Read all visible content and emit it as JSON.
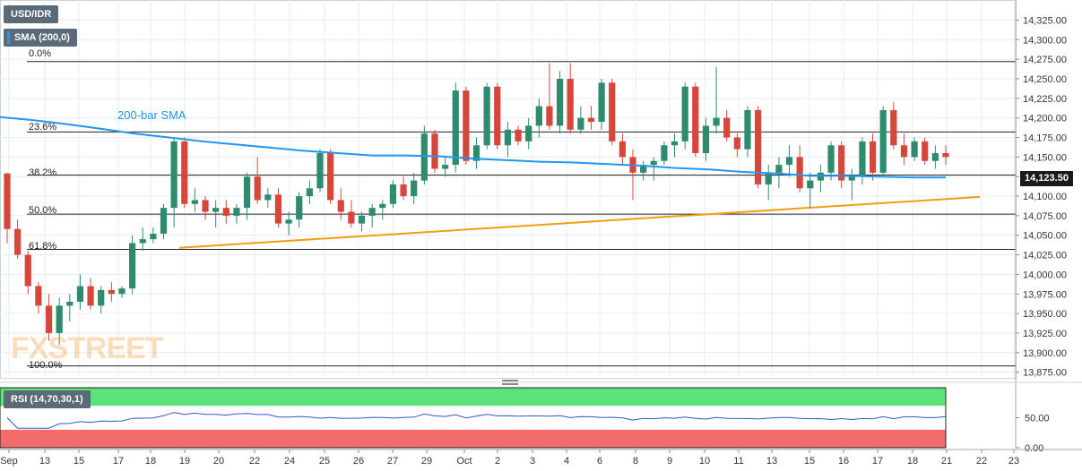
{
  "header": {
    "symbol": "USD/IDR",
    "indicator": "SMA (200,0)",
    "indicator_color": "#2196f3"
  },
  "watermark": "FXSTREET",
  "price_tag": "14,123.50",
  "rsi_panel": {
    "label": "RSI (14,70,30,1)",
    "overbought": 70,
    "oversold": 30,
    "ticks": [
      "50.00",
      "0.00"
    ],
    "zone_colors": {
      "overbought": "#5be37a",
      "oversold": "#f36b6b",
      "line": "#3355cc"
    }
  },
  "chart_data": {
    "type": "candlestick",
    "title": "",
    "price_range": [
      13870,
      14345
    ],
    "y_ticks": [
      "14,325.00",
      "14,300.00",
      "14,275.00",
      "14,250.00",
      "14,225.00",
      "14,200.00",
      "14,175.00",
      "14,150.00",
      "14,125.00",
      "14,100.00",
      "14,075.00",
      "14,050.00",
      "14,025.00",
      "14,000.00",
      "13,975.00",
      "13,950.00",
      "13,925.00",
      "13,900.00",
      "13,875.00"
    ],
    "x_tick_labels": [
      "Sep",
      "13",
      "15",
      "17",
      "18",
      "19",
      "20",
      "22",
      "24",
      "25",
      "26",
      "27",
      "29",
      "Oct",
      "2",
      "3",
      "4",
      "6",
      "8",
      "9",
      "10",
      "11",
      "13",
      "15",
      "16",
      "17",
      "18",
      "21",
      "22",
      "23"
    ],
    "fib_levels": [
      {
        "label": "0.0%",
        "value": 14272
      },
      {
        "label": "23.6%",
        "value": 14182
      },
      {
        "label": "38.2%",
        "value": 14127
      },
      {
        "label": "50.0%",
        "value": 14077
      },
      {
        "label": "61.8%",
        "value": 14032
      },
      {
        "label": "100.0%",
        "value": 13883
      }
    ],
    "annotations": {
      "sma_label": "200-bar SMA",
      "trendline": {
        "from": 14034,
        "to": 14099,
        "color": "#f39c12"
      }
    },
    "colors": {
      "up": "#2e8b6e",
      "down": "#d6463b",
      "sma": "#2196f3",
      "grid": "#e6ecf2"
    },
    "sma": [
      14201,
      14197,
      14192,
      14186,
      14180,
      14175,
      14170,
      14166,
      14162,
      14158,
      14155,
      14152,
      14152,
      14151,
      14148,
      14146,
      14144,
      14143,
      14141,
      14139,
      14136,
      14134,
      14131,
      14129,
      14126,
      14126,
      14125,
      14124,
      14124
    ],
    "candles": [
      {
        "o": 14129,
        "h": 14130,
        "l": 14040,
        "c": 14058
      },
      {
        "o": 14058,
        "h": 14070,
        "l": 14020,
        "c": 14025
      },
      {
        "o": 14025,
        "h": 14030,
        "l": 13975,
        "c": 13985
      },
      {
        "o": 13985,
        "h": 13990,
        "l": 13950,
        "c": 13960
      },
      {
        "o": 13960,
        "h": 13975,
        "l": 13915,
        "c": 13925
      },
      {
        "o": 13925,
        "h": 13970,
        "l": 13910,
        "c": 13960
      },
      {
        "o": 13960,
        "h": 13975,
        "l": 13940,
        "c": 13965
      },
      {
        "o": 13965,
        "h": 14000,
        "l": 13955,
        "c": 13985
      },
      {
        "o": 13985,
        "h": 13995,
        "l": 13955,
        "c": 13960
      },
      {
        "o": 13960,
        "h": 13985,
        "l": 13950,
        "c": 13980
      },
      {
        "o": 13980,
        "h": 13990,
        "l": 13965,
        "c": 13975
      },
      {
        "o": 13975,
        "h": 13985,
        "l": 13970,
        "c": 13982
      },
      {
        "o": 13982,
        "h": 14050,
        "l": 13975,
        "c": 14040
      },
      {
        "o": 14040,
        "h": 14060,
        "l": 14030,
        "c": 14045
      },
      {
        "o": 14045,
        "h": 14060,
        "l": 14040,
        "c": 14052
      },
      {
        "o": 14052,
        "h": 14090,
        "l": 14045,
        "c": 14085
      },
      {
        "o": 14085,
        "h": 14175,
        "l": 14060,
        "c": 14170
      },
      {
        "o": 14170,
        "h": 14175,
        "l": 14085,
        "c": 14090
      },
      {
        "o": 14090,
        "h": 14110,
        "l": 14080,
        "c": 14095
      },
      {
        "o": 14095,
        "h": 14100,
        "l": 14070,
        "c": 14080
      },
      {
        "o": 14080,
        "h": 14095,
        "l": 14060,
        "c": 14085
      },
      {
        "o": 14085,
        "h": 14095,
        "l": 14065,
        "c": 14075
      },
      {
        "o": 14075,
        "h": 14090,
        "l": 14065,
        "c": 14085
      },
      {
        "o": 14085,
        "h": 14130,
        "l": 14070,
        "c": 14125
      },
      {
        "o": 14125,
        "h": 14150,
        "l": 14090,
        "c": 14095
      },
      {
        "o": 14095,
        "h": 14110,
        "l": 14085,
        "c": 14102
      },
      {
        "o": 14102,
        "h": 14110,
        "l": 14060,
        "c": 14065
      },
      {
        "o": 14065,
        "h": 14080,
        "l": 14050,
        "c": 14070
      },
      {
        "o": 14070,
        "h": 14105,
        "l": 14060,
        "c": 14100
      },
      {
        "o": 14100,
        "h": 14120,
        "l": 14090,
        "c": 14110
      },
      {
        "o": 14110,
        "h": 14160,
        "l": 14105,
        "c": 14155
      },
      {
        "o": 14155,
        "h": 14160,
        "l": 14090,
        "c": 14095
      },
      {
        "o": 14095,
        "h": 14110,
        "l": 14070,
        "c": 14080
      },
      {
        "o": 14080,
        "h": 14095,
        "l": 14060,
        "c": 14065
      },
      {
        "o": 14065,
        "h": 14080,
        "l": 14055,
        "c": 14075
      },
      {
        "o": 14075,
        "h": 14090,
        "l": 14060,
        "c": 14085
      },
      {
        "o": 14085,
        "h": 14095,
        "l": 14070,
        "c": 14090
      },
      {
        "o": 14090,
        "h": 14120,
        "l": 14085,
        "c": 14115
      },
      {
        "o": 14115,
        "h": 14125,
        "l": 14095,
        "c": 14100
      },
      {
        "o": 14100,
        "h": 14130,
        "l": 14090,
        "c": 14120
      },
      {
        "o": 14120,
        "h": 14190,
        "l": 14115,
        "c": 14180
      },
      {
        "o": 14180,
        "h": 14185,
        "l": 14130,
        "c": 14135
      },
      {
        "o": 14135,
        "h": 14150,
        "l": 14125,
        "c": 14140
      },
      {
        "o": 14140,
        "h": 14245,
        "l": 14130,
        "c": 14235
      },
      {
        "o": 14235,
        "h": 14240,
        "l": 14140,
        "c": 14145
      },
      {
        "o": 14145,
        "h": 14175,
        "l": 14135,
        "c": 14165
      },
      {
        "o": 14165,
        "h": 14245,
        "l": 14160,
        "c": 14240
      },
      {
        "o": 14240,
        "h": 14245,
        "l": 14160,
        "c": 14165
      },
      {
        "o": 14165,
        "h": 14195,
        "l": 14150,
        "c": 14185
      },
      {
        "o": 14185,
        "h": 14190,
        "l": 14165,
        "c": 14170
      },
      {
        "o": 14170,
        "h": 14200,
        "l": 14160,
        "c": 14190
      },
      {
        "o": 14190,
        "h": 14225,
        "l": 14175,
        "c": 14215
      },
      {
        "o": 14215,
        "h": 14270,
        "l": 14185,
        "c": 14190
      },
      {
        "o": 14190,
        "h": 14260,
        "l": 14180,
        "c": 14250
      },
      {
        "o": 14250,
        "h": 14270,
        "l": 14180,
        "c": 14185
      },
      {
        "o": 14185,
        "h": 14215,
        "l": 14180,
        "c": 14200
      },
      {
        "o": 14200,
        "h": 14215,
        "l": 14185,
        "c": 14195
      },
      {
        "o": 14195,
        "h": 14250,
        "l": 14185,
        "c": 14245
      },
      {
        "o": 14245,
        "h": 14250,
        "l": 14165,
        "c": 14170
      },
      {
        "o": 14170,
        "h": 14180,
        "l": 14140,
        "c": 14150
      },
      {
        "o": 14150,
        "h": 14160,
        "l": 14095,
        "c": 14130
      },
      {
        "o": 14130,
        "h": 14145,
        "l": 14120,
        "c": 14140
      },
      {
        "o": 14140,
        "h": 14150,
        "l": 14120,
        "c": 14145
      },
      {
        "o": 14145,
        "h": 14170,
        "l": 14140,
        "c": 14165
      },
      {
        "o": 14165,
        "h": 14180,
        "l": 14150,
        "c": 14170
      },
      {
        "o": 14170,
        "h": 14245,
        "l": 14160,
        "c": 14240
      },
      {
        "o": 14240,
        "h": 14245,
        "l": 14150,
        "c": 14155
      },
      {
        "o": 14155,
        "h": 14200,
        "l": 14145,
        "c": 14190
      },
      {
        "o": 14190,
        "h": 14265,
        "l": 14180,
        "c": 14200
      },
      {
        "o": 14200,
        "h": 14210,
        "l": 14170,
        "c": 14175
      },
      {
        "o": 14175,
        "h": 14180,
        "l": 14150,
        "c": 14160
      },
      {
        "o": 14160,
        "h": 14215,
        "l": 14150,
        "c": 14210
      },
      {
        "o": 14210,
        "h": 14215,
        "l": 14110,
        "c": 14115
      },
      {
        "o": 14115,
        "h": 14140,
        "l": 14095,
        "c": 14130
      },
      {
        "o": 14130,
        "h": 14150,
        "l": 14110,
        "c": 14140
      },
      {
        "o": 14140,
        "h": 14165,
        "l": 14125,
        "c": 14150
      },
      {
        "o": 14150,
        "h": 14165,
        "l": 14105,
        "c": 14110
      },
      {
        "o": 14110,
        "h": 14130,
        "l": 14085,
        "c": 14120
      },
      {
        "o": 14120,
        "h": 14140,
        "l": 14105,
        "c": 14130
      },
      {
        "o": 14130,
        "h": 14170,
        "l": 14120,
        "c": 14165
      },
      {
        "o": 14165,
        "h": 14170,
        "l": 14110,
        "c": 14120
      },
      {
        "o": 14120,
        "h": 14135,
        "l": 14095,
        "c": 14125
      },
      {
        "o": 14125,
        "h": 14175,
        "l": 14115,
        "c": 14170
      },
      {
        "o": 14170,
        "h": 14180,
        "l": 14120,
        "c": 14130
      },
      {
        "o": 14130,
        "h": 14215,
        "l": 14125,
        "c": 14210
      },
      {
        "o": 14210,
        "h": 14220,
        "l": 14160,
        "c": 14165
      },
      {
        "o": 14165,
        "h": 14180,
        "l": 14140,
        "c": 14150
      },
      {
        "o": 14150,
        "h": 14175,
        "l": 14145,
        "c": 14170
      },
      {
        "o": 14170,
        "h": 14175,
        "l": 14140,
        "c": 14145
      },
      {
        "o": 14145,
        "h": 14165,
        "l": 14135,
        "c": 14155
      },
      {
        "o": 14155,
        "h": 14165,
        "l": 14140,
        "c": 14150
      }
    ]
  }
}
